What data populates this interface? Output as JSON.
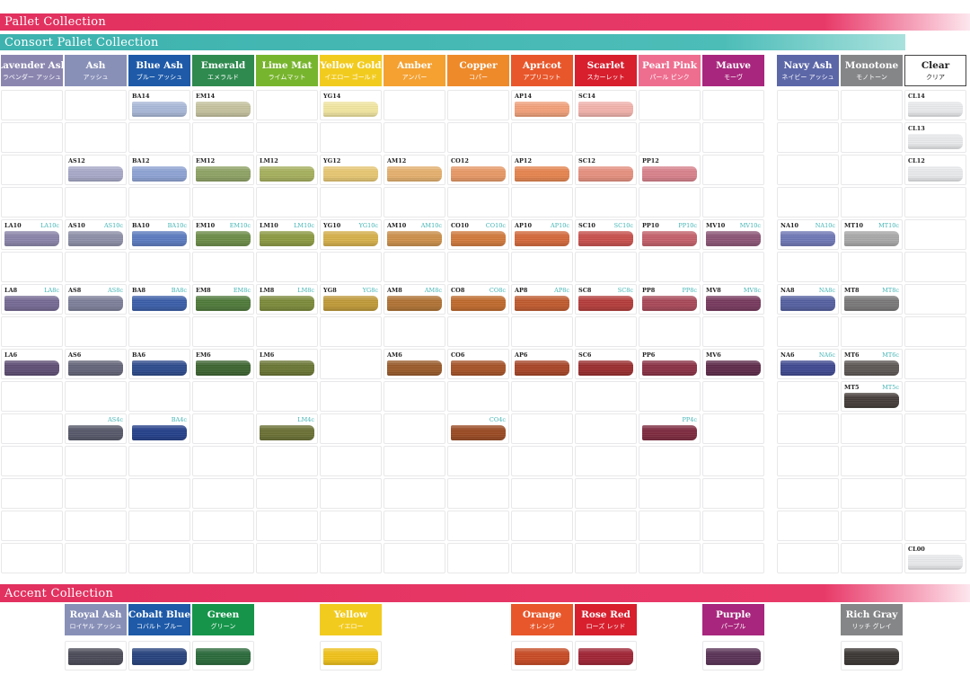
{
  "banners": {
    "pallet": "Pallet Collection",
    "consort": "Consort Pallet Collection",
    "accent": "Accent Collection"
  },
  "columns": [
    {
      "en": "Lavender Ash",
      "jp": "ラベンダー アッシュ",
      "color": "#8b86b0",
      "text": "#ffffff"
    },
    {
      "en": "Ash",
      "jp": "アッシュ",
      "color": "#8890b8",
      "text": "#ffffff"
    },
    {
      "en": "Blue Ash",
      "jp": "ブルー アッシュ",
      "color": "#1e5aa8",
      "text": "#ffffff"
    },
    {
      "en": "Emerald",
      "jp": "エメラルド",
      "color": "#2f8a4f",
      "text": "#ffffff"
    },
    {
      "en": "Lime Mat",
      "jp": "ライムマット",
      "color": "#78b52e",
      "text": "#ffffff"
    },
    {
      "en": "Yellow Gold",
      "jp": "イエロー ゴールド",
      "color": "#f2cb1f",
      "text": "#ffffff"
    },
    {
      "en": "Amber",
      "jp": "アンバー",
      "color": "#f4a132",
      "text": "#ffffff"
    },
    {
      "en": "Copper",
      "jp": "コパー",
      "color": "#ee8a2a",
      "text": "#ffffff"
    },
    {
      "en": "Apricot",
      "jp": "アプリコット",
      "color": "#e8572b",
      "text": "#ffffff"
    },
    {
      "en": "Scarlet",
      "jp": "スカーレット",
      "color": "#d71f2e",
      "text": "#ffffff"
    },
    {
      "en": "Pearl Pink",
      "jp": "パール ピンク",
      "color": "#ee6e8f",
      "text": "#ffffff"
    },
    {
      "en": "Mauve",
      "jp": "モーヴ",
      "color": "#a8267d",
      "text": "#ffffff"
    },
    {
      "en": "Navy Ash",
      "jp": "ネイビー アッシュ",
      "color": "#5c67a8",
      "text": "#ffffff"
    },
    {
      "en": "Monotone",
      "jp": "モノトーン",
      "color": "#858688",
      "text": "#ffffff"
    },
    {
      "en": "Clear",
      "jp": "クリア",
      "color": "#ffffff",
      "text": "#222222"
    }
  ],
  "swatches": [
    {
      "col": 2,
      "row": 0,
      "code": "BA14",
      "c": "",
      "color": "#a9b8d8"
    },
    {
      "col": 3,
      "row": 0,
      "code": "EM14",
      "c": "",
      "color": "#c4c29d"
    },
    {
      "col": 5,
      "row": 0,
      "code": "YG14",
      "c": "",
      "color": "#f2e6a0"
    },
    {
      "col": 8,
      "row": 0,
      "code": "AP14",
      "c": "",
      "color": "#f2a079"
    },
    {
      "col": 9,
      "row": 0,
      "code": "SC14",
      "c": "",
      "color": "#f2b2ab"
    },
    {
      "col": 14,
      "row": 0,
      "code": "CL14",
      "c": "",
      "color": "#e8eaec"
    },
    {
      "col": 14,
      "row": 1,
      "code": "CL13",
      "c": "",
      "color": "#e8eaec"
    },
    {
      "col": 1,
      "row": 2,
      "code": "AS12",
      "c": "",
      "color": "#a7a9c8"
    },
    {
      "col": 2,
      "row": 2,
      "code": "BA12",
      "c": "",
      "color": "#8ea3d4"
    },
    {
      "col": 3,
      "row": 2,
      "code": "EM12",
      "c": "",
      "color": "#8ea264"
    },
    {
      "col": 4,
      "row": 2,
      "code": "LM12",
      "c": "",
      "color": "#a6b05d"
    },
    {
      "col": 5,
      "row": 2,
      "code": "YG12",
      "c": "",
      "color": "#e7c772"
    },
    {
      "col": 6,
      "row": 2,
      "code": "AM12",
      "c": "",
      "color": "#e5b06e"
    },
    {
      "col": 7,
      "row": 2,
      "code": "CO12",
      "c": "",
      "color": "#e89966"
    },
    {
      "col": 8,
      "row": 2,
      "code": "AP12",
      "c": "",
      "color": "#e6844f"
    },
    {
      "col": 9,
      "row": 2,
      "code": "SC12",
      "c": "",
      "color": "#e6907f"
    },
    {
      "col": 10,
      "row": 2,
      "code": "PP12",
      "c": "",
      "color": "#d8818b"
    },
    {
      "col": 14,
      "row": 2,
      "code": "CL12",
      "c": "",
      "color": "#e8eaec"
    },
    {
      "col": 0,
      "row": 4,
      "code": "LA10",
      "c": "LA10c",
      "color": "#8a84aa"
    },
    {
      "col": 1,
      "row": 4,
      "code": "AS10",
      "c": "AS10c",
      "color": "#8d8fa8"
    },
    {
      "col": 2,
      "row": 4,
      "code": "BA10",
      "c": "BA10c",
      "color": "#5b7bc0"
    },
    {
      "col": 3,
      "row": 4,
      "code": "EM10",
      "c": "EM10c",
      "color": "#6c8c48"
    },
    {
      "col": 4,
      "row": 4,
      "code": "LM10",
      "c": "LM10c",
      "color": "#8c9a42"
    },
    {
      "col": 5,
      "row": 4,
      "code": "YG10",
      "c": "YG10c",
      "color": "#d6b04a"
    },
    {
      "col": 6,
      "row": 4,
      "code": "AM10",
      "c": "AM10c",
      "color": "#cc8f4a"
    },
    {
      "col": 7,
      "row": 4,
      "code": "CO10",
      "c": "CO10c",
      "color": "#d27a3c"
    },
    {
      "col": 8,
      "row": 4,
      "code": "AP10",
      "c": "AP10c",
      "color": "#d4683a"
    },
    {
      "col": 9,
      "row": 4,
      "code": "SC10",
      "c": "SC10c",
      "color": "#c8504c"
    },
    {
      "col": 10,
      "row": 4,
      "code": "PP10",
      "c": "PP10c",
      "color": "#c4606a"
    },
    {
      "col": 11,
      "row": 4,
      "code": "MV10",
      "c": "MV10c",
      "color": "#8c5576"
    },
    {
      "col": 12,
      "row": 4,
      "code": "NA10",
      "c": "NA10c",
      "color": "#6f78b6"
    },
    {
      "col": 13,
      "row": 4,
      "code": "MT10",
      "c": "MT10c",
      "color": "#a8a8a8"
    },
    {
      "col": 0,
      "row": 6,
      "code": "LA8",
      "c": "LA8c",
      "color": "#756a94"
    },
    {
      "col": 1,
      "row": 6,
      "code": "AS8",
      "c": "AS8c",
      "color": "#7d7f9a"
    },
    {
      "col": 2,
      "row": 6,
      "code": "BA8",
      "c": "BA8c",
      "color": "#3a5ea8"
    },
    {
      "col": 3,
      "row": 6,
      "code": "EM8",
      "c": "EM8c",
      "color": "#4f7a3a"
    },
    {
      "col": 4,
      "row": 6,
      "code": "LM8",
      "c": "LM8c",
      "color": "#7b8a3a"
    },
    {
      "col": 5,
      "row": 6,
      "code": "YG8",
      "c": "YG8c",
      "color": "#c09a38"
    },
    {
      "col": 6,
      "row": 6,
      "code": "AM8",
      "c": "AM8c",
      "color": "#b07234"
    },
    {
      "col": 7,
      "row": 6,
      "code": "CO8",
      "c": "CO8c",
      "color": "#c06a2c"
    },
    {
      "col": 8,
      "row": 6,
      "code": "AP8",
      "c": "AP8c",
      "color": "#c05a2e"
    },
    {
      "col": 9,
      "row": 6,
      "code": "SC8",
      "c": "SC8c",
      "color": "#b43c3a"
    },
    {
      "col": 10,
      "row": 6,
      "code": "PP8",
      "c": "PP8c",
      "color": "#a84858"
    },
    {
      "col": 11,
      "row": 6,
      "code": "MV8",
      "c": "MV8c",
      "color": "#77395e"
    },
    {
      "col": 12,
      "row": 6,
      "code": "NA8",
      "c": "NA8c",
      "color": "#5460a0"
    },
    {
      "col": 13,
      "row": 6,
      "code": "MT8",
      "c": "MT8c",
      "color": "#7a7878"
    },
    {
      "col": 0,
      "row": 8,
      "code": "LA6",
      "c": "",
      "color": "#5e4e74"
    },
    {
      "col": 1,
      "row": 8,
      "code": "AS6",
      "c": "",
      "color": "#636478"
    },
    {
      "col": 2,
      "row": 8,
      "code": "BA6",
      "c": "",
      "color": "#2c4a8c"
    },
    {
      "col": 3,
      "row": 8,
      "code": "EM6",
      "c": "",
      "color": "#3c6430"
    },
    {
      "col": 4,
      "row": 8,
      "code": "LM6",
      "c": "",
      "color": "#6a7634"
    },
    {
      "col": 6,
      "row": 8,
      "code": "AM6",
      "c": "",
      "color": "#9a5a2a"
    },
    {
      "col": 7,
      "row": 8,
      "code": "CO6",
      "c": "",
      "color": "#a65226"
    },
    {
      "col": 8,
      "row": 8,
      "code": "AP6",
      "c": "",
      "color": "#a84426"
    },
    {
      "col": 9,
      "row": 8,
      "code": "SC6",
      "c": "",
      "color": "#9a2c2e"
    },
    {
      "col": 10,
      "row": 8,
      "code": "PP6",
      "c": "",
      "color": "#8a3044"
    },
    {
      "col": 11,
      "row": 8,
      "code": "MV6",
      "c": "",
      "color": "#5e2a4a"
    },
    {
      "col": 12,
      "row": 8,
      "code": "NA6",
      "c": "NA6c",
      "color": "#3e4890"
    },
    {
      "col": 13,
      "row": 8,
      "code": "MT6",
      "c": "MT6c",
      "color": "#5c5654"
    },
    {
      "col": 13,
      "row": 9,
      "code": "MT5",
      "c": "MT5c",
      "color": "#443c38"
    },
    {
      "col": 1,
      "row": 10,
      "code": "",
      "c": "AS4c",
      "color": "#56586a"
    },
    {
      "col": 2,
      "row": 10,
      "code": "",
      "c": "BA4c",
      "color": "#24408a"
    },
    {
      "col": 4,
      "row": 10,
      "code": "",
      "c": "LM4c",
      "color": "#6a7034"
    },
    {
      "col": 7,
      "row": 10,
      "code": "",
      "c": "CO4c",
      "color": "#9a4a22"
    },
    {
      "col": 10,
      "row": 10,
      "code": "",
      "c": "PP4c",
      "color": "#7e2a3e"
    },
    {
      "col": 14,
      "row": 14,
      "code": "CL00",
      "c": "",
      "color": "#e8eaec"
    }
  ],
  "accent": [
    {
      "col": 1,
      "en": "Royal Ash",
      "jp": "ロイヤル アッシュ",
      "color": "#8890b8",
      "swatch": "#4a4a58"
    },
    {
      "col": 2,
      "en": "Cobalt Blue",
      "jp": "コバルト ブルー",
      "color": "#1e5aa8",
      "swatch": "#26427e"
    },
    {
      "col": 3,
      "en": "Green",
      "jp": "グリーン",
      "color": "#16954a",
      "swatch": "#2a6a3a"
    },
    {
      "col": 5,
      "en": "Yellow",
      "jp": "イエロー",
      "color": "#f2cb1f",
      "swatch": "#f0c21a"
    },
    {
      "col": 8,
      "en": "Orange",
      "jp": "オレンジ",
      "color": "#e8572b",
      "swatch": "#c84a24"
    },
    {
      "col": 9,
      "en": "Rose Red",
      "jp": "ローズ レッド",
      "color": "#d71f2e",
      "swatch": "#a02434"
    },
    {
      "col": 11,
      "en": "Purple",
      "jp": "パープル",
      "color": "#a8267d",
      "swatch": "#5a3256"
    },
    {
      "col": 13,
      "en": "Rich Gray",
      "jp": "リッチ グレイ",
      "color": "#858688",
      "swatch": "#3a3634"
    }
  ]
}
